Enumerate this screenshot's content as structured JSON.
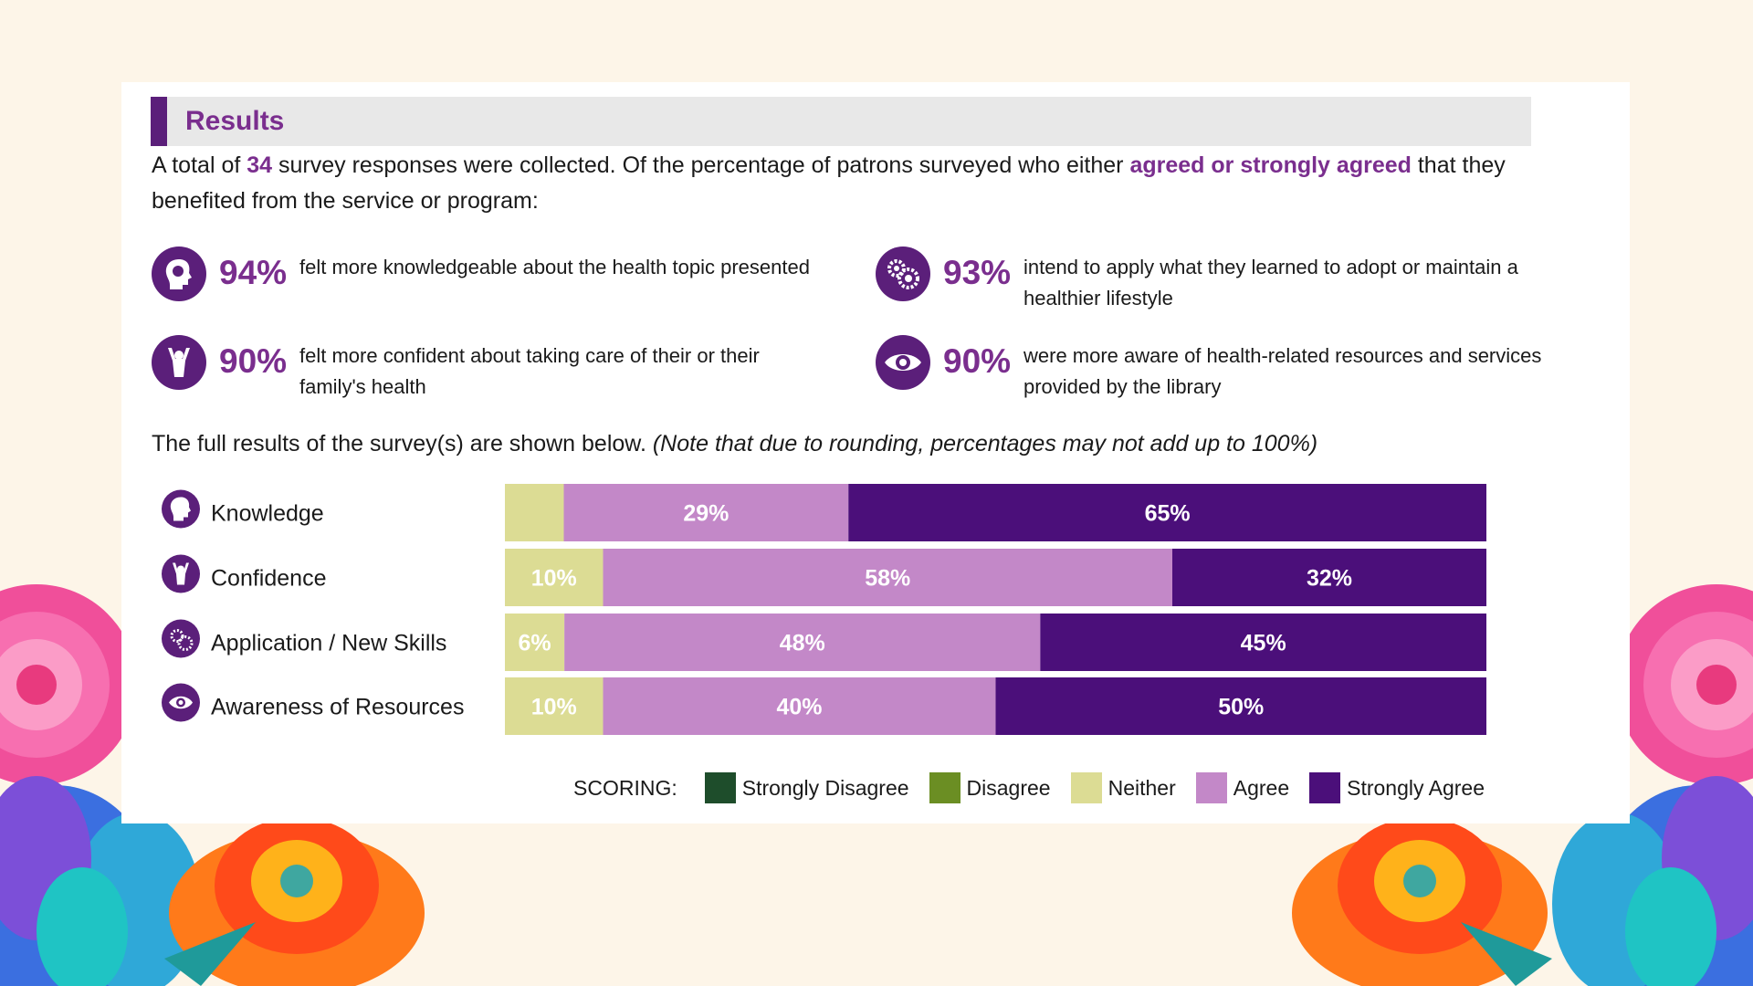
{
  "header": {
    "title": "Results"
  },
  "intro": {
    "part1": "A total of ",
    "count": "34",
    "part2": " survey responses were collected. Of the percentage of patrons surveyed who either ",
    "highlight": "agreed or strongly agreed",
    "part3": " that they benefited from the service or program:"
  },
  "stats": [
    {
      "icon": "head-icon",
      "pct": "94%",
      "text": "felt more knowledgeable about the health topic presented"
    },
    {
      "icon": "gears-icon",
      "pct": "93%",
      "text": "intend to apply what they learned to adopt or maintain a healthier lifestyle"
    },
    {
      "icon": "person-arms-up-icon",
      "pct": "90%",
      "text": "felt more confident about taking care of their or their family's health"
    },
    {
      "icon": "eye-icon",
      "pct": "90%",
      "text": "were more aware of health-related resources and services provided by the library"
    }
  ],
  "note": {
    "text": "The full results of the survey(s) are shown below. ",
    "italic": "(Note that due to rounding, percentages may not add up to 100%)"
  },
  "chart_data": {
    "type": "bar",
    "orientation": "horizontal",
    "stacked": true,
    "categories": [
      "Knowledge",
      "Confidence",
      "Application / New Skills",
      "Awareness of Resources"
    ],
    "category_icons": [
      "head-icon",
      "person-arms-up-icon",
      "gears-icon",
      "eye-icon"
    ],
    "series": [
      {
        "name": "Strongly Disagree",
        "color": "#1e4d2b",
        "values": [
          0,
          0,
          0,
          0
        ],
        "labels": [
          "",
          "",
          "",
          ""
        ]
      },
      {
        "name": "Disagree",
        "color": "#6b8e23",
        "values": [
          0,
          0,
          0,
          0
        ],
        "labels": [
          "",
          "",
          "",
          ""
        ]
      },
      {
        "name": "Neither",
        "color": "#dcdc94",
        "values": [
          6,
          10,
          6,
          10
        ],
        "labels": [
          "",
          "10%",
          "6%",
          "10%"
        ]
      },
      {
        "name": "Agree",
        "color": "#c388c8",
        "values": [
          29,
          58,
          48,
          40
        ],
        "labels": [
          "29%",
          "58%",
          "48%",
          "40%"
        ]
      },
      {
        "name": "Strongly Agree",
        "color": "#4b0f7a",
        "values": [
          65,
          32,
          45,
          50
        ],
        "labels": [
          "65%",
          "32%",
          "45%",
          "50%"
        ]
      }
    ],
    "legend": {
      "title": "SCORING:",
      "position": "bottom"
    }
  },
  "colors": {
    "accent": "#5b1f7a",
    "highlight": "#7a2e8e",
    "background": "#fdf5e8"
  }
}
